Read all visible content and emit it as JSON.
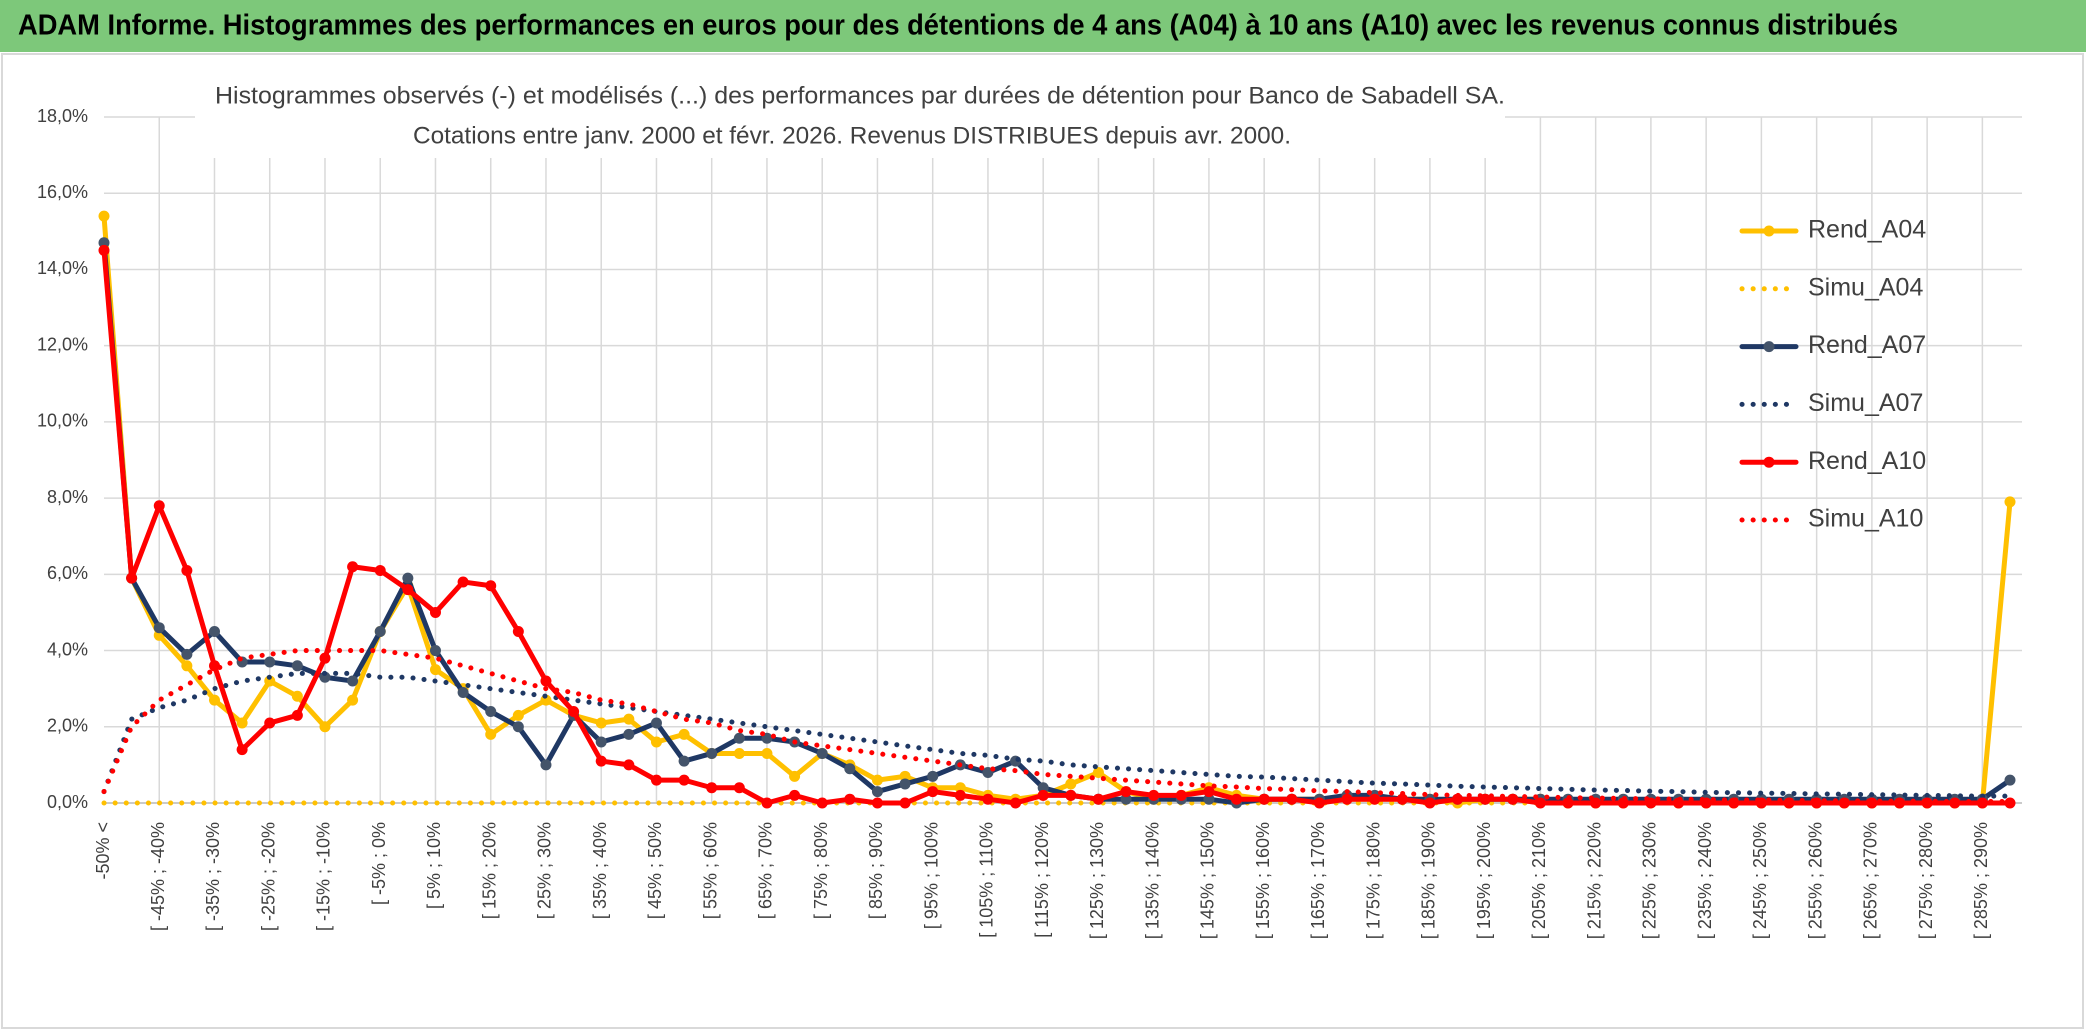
{
  "chart_data": {
    "type": "line",
    "title": "ADAM Informe. Histogrammes des performances en euros pour des détentions de 4 ans (A04) à 10 ans (A10) avec les revenus connus distribués",
    "subtitle": [
      "Histogrammes observés (-) et modélisés (...) des performances par durées de détention pour Banco de Sabadell SA.",
      "Cotations entre janv. 2000 et févr. 2026. Revenus DISTRIBUES depuis avr. 2000."
    ],
    "categories": [
      "-50% <",
      null,
      "[ -45% ; -40%",
      null,
      "[ -35% ; -30%",
      null,
      "[ -25% ; -20%",
      null,
      "[ -15% ; -10%",
      null,
      "[ -5% ; 0%",
      null,
      "[ 5% ; 10%",
      null,
      "[ 15% ; 20%",
      null,
      "[ 25% ; 30%",
      null,
      "[ 35% ; 40%",
      null,
      "[ 45% ; 50%",
      null,
      "[ 55% ; 60%",
      null,
      "[ 65% ; 70%",
      null,
      "[ 75% ; 80%",
      null,
      "[ 85% ; 90%",
      null,
      "[ 95% ; 100%",
      null,
      "[ 105% ; 110%",
      null,
      "[ 115% ; 120%",
      null,
      "[ 125% ; 130%",
      null,
      "[ 135% ; 140%",
      null,
      "[ 145% ; 150%",
      null,
      "[ 155% ; 160%",
      null,
      "[ 165% ; 170%",
      null,
      "[ 175% ; 180%",
      null,
      "[ 185% ; 190%",
      null,
      "[ 195% ; 200%",
      null,
      "[ 205% ; 210%",
      null,
      "[ 215% ; 220%",
      null,
      "[ 225% ; 230%",
      null,
      "[ 235% ; 240%",
      null,
      "[ 245% ; 250%",
      null,
      "[ 255% ; 260%",
      null,
      "[ 265% ; 270%",
      null,
      "[ 275% ; 280%",
      null,
      "[ 285% ; 290%",
      null
    ],
    "ylim": [
      0,
      18
    ],
    "yticks": [
      {
        "value": 0,
        "label": "0,0%"
      },
      {
        "value": 2,
        "label": "2,0%"
      },
      {
        "value": 4,
        "label": "4,0%"
      },
      {
        "value": 6,
        "label": "6,0%"
      },
      {
        "value": 8,
        "label": "8,0%"
      },
      {
        "value": 10,
        "label": "10,0%"
      },
      {
        "value": 12,
        "label": "12,0%"
      },
      {
        "value": 14,
        "label": "14,0%"
      },
      {
        "value": 16,
        "label": "16,0%"
      },
      {
        "value": 18,
        "label": "18,0%"
      }
    ],
    "grid": true,
    "legend": "right",
    "series": [
      {
        "name": "Rend_A04",
        "color": "#ffc000",
        "line_style": "solid",
        "values": [
          15.4,
          5.9,
          4.4,
          3.6,
          2.7,
          2.1,
          3.2,
          2.8,
          2.0,
          2.7,
          4.5,
          5.7,
          3.5,
          3.0,
          1.8,
          2.3,
          2.7,
          2.3,
          2.1,
          2.2,
          1.6,
          1.8,
          1.3,
          1.3,
          1.3,
          0.7,
          1.3,
          1.0,
          0.6,
          0.7,
          0.4,
          0.4,
          0.2,
          0.1,
          0.2,
          0.5,
          0.8,
          0.3,
          0.1,
          0.2,
          0.4,
          0.2,
          0.1,
          0.1,
          0.1,
          0.1,
          0.1,
          0.1,
          0.1,
          0.0,
          0.1,
          0.1,
          0.1,
          0.0,
          0.0,
          0.0,
          0.0,
          0.0,
          0.0,
          0.0,
          0.0,
          0.0,
          0.0,
          0.0,
          0.0,
          0.0,
          0.0,
          0.0,
          0.0,
          7.9
        ]
      },
      {
        "name": "Simu_A04",
        "color": "#ffc000",
        "line_style": "dotted",
        "values": [
          0,
          0,
          0,
          0,
          0,
          0,
          0,
          0,
          0,
          0,
          0,
          0,
          0,
          0,
          0,
          0,
          0,
          0,
          0,
          0,
          0,
          0,
          0,
          0,
          0,
          0,
          0,
          0,
          0,
          0,
          0,
          0,
          0,
          0,
          0,
          0,
          0,
          0,
          0,
          0,
          0,
          0,
          0,
          0,
          0,
          0,
          0,
          0,
          0,
          0,
          0,
          0,
          0,
          0,
          0,
          0,
          0,
          0,
          0,
          0,
          0,
          0,
          0,
          0,
          0,
          0,
          0,
          0,
          0,
          0
        ]
      },
      {
        "name": "Rend_A07",
        "color": "#1f3864",
        "line_style": "solid",
        "values": [
          14.7,
          5.9,
          4.6,
          3.9,
          4.5,
          3.7,
          3.7,
          3.6,
          3.3,
          3.2,
          4.5,
          5.9,
          4.0,
          2.9,
          2.4,
          2.0,
          1.0,
          2.3,
          1.6,
          1.8,
          2.1,
          1.1,
          1.3,
          1.7,
          1.7,
          1.6,
          1.3,
          0.9,
          0.3,
          0.5,
          0.7,
          1.0,
          0.8,
          1.1,
          0.4,
          0.2,
          0.1,
          0.1,
          0.1,
          0.1,
          0.1,
          0.0,
          0.1,
          0.1,
          0.1,
          0.2,
          0.2,
          0.1,
          0.1,
          0.1,
          0.1,
          0.1,
          0.1,
          0.1,
          0.1,
          0.1,
          0.1,
          0.1,
          0.1,
          0.1,
          0.1,
          0.1,
          0.1,
          0.1,
          0.1,
          0.1,
          0.1,
          0.1,
          0.1,
          0.6
        ]
      },
      {
        "name": "Simu_A07",
        "color": "#1f3864",
        "line_style": "dotted",
        "values": [
          0.3,
          2.2,
          2.5,
          2.7,
          3.0,
          3.2,
          3.3,
          3.4,
          3.4,
          3.4,
          3.3,
          3.3,
          3.2,
          3.1,
          3.0,
          2.9,
          2.8,
          2.7,
          2.6,
          2.5,
          2.4,
          2.3,
          2.2,
          2.1,
          2.0,
          1.9,
          1.8,
          1.7,
          1.6,
          1.5,
          1.4,
          1.3,
          1.25,
          1.15,
          1.1,
          1.0,
          0.95,
          0.9,
          0.85,
          0.8,
          0.75,
          0.7,
          0.68,
          0.64,
          0.6,
          0.56,
          0.52,
          0.5,
          0.47,
          0.44,
          0.42,
          0.4,
          0.38,
          0.36,
          0.34,
          0.33,
          0.31,
          0.3,
          0.28,
          0.27,
          0.26,
          0.25,
          0.24,
          0.23,
          0.22,
          0.21,
          0.2,
          0.19,
          0.18,
          0.18
        ]
      },
      {
        "name": "Rend_A10",
        "color": "#ff0000",
        "line_style": "solid",
        "values": [
          14.5,
          5.9,
          7.8,
          6.1,
          3.6,
          1.4,
          2.1,
          2.3,
          3.8,
          6.2,
          6.1,
          5.6,
          5.0,
          5.8,
          5.7,
          4.5,
          3.2,
          2.4,
          1.1,
          1.0,
          0.6,
          0.6,
          0.4,
          0.4,
          0.0,
          0.2,
          0.0,
          0.1,
          0.0,
          0.0,
          0.3,
          0.2,
          0.1,
          0.0,
          0.2,
          0.2,
          0.1,
          0.3,
          0.2,
          0.2,
          0.3,
          0.1,
          0.1,
          0.1,
          0.0,
          0.1,
          0.1,
          0.1,
          0.0,
          0.1,
          0.1,
          0.1,
          0.0,
          0.0,
          0.0,
          0.0,
          0.0,
          0.0,
          0.0,
          0.0,
          0.0,
          0.0,
          0.0,
          0.0,
          0.0,
          0.0,
          0.0,
          0.0,
          0.0,
          0.0
        ]
      },
      {
        "name": "Simu_A10",
        "color": "#ff0000",
        "line_style": "dotted",
        "values": [
          0.3,
          2.0,
          2.7,
          3.1,
          3.5,
          3.8,
          3.9,
          4.0,
          4.0,
          4.0,
          4.0,
          3.9,
          3.8,
          3.6,
          3.4,
          3.2,
          3.0,
          2.9,
          2.7,
          2.6,
          2.4,
          2.2,
          2.1,
          1.9,
          1.8,
          1.6,
          1.5,
          1.4,
          1.3,
          1.2,
          1.1,
          1.0,
          0.9,
          0.85,
          0.75,
          0.7,
          0.65,
          0.6,
          0.55,
          0.5,
          0.45,
          0.42,
          0.38,
          0.35,
          0.32,
          0.3,
          0.27,
          0.25,
          0.22,
          0.2,
          0.19,
          0.17,
          0.16,
          0.14,
          0.13,
          0.12,
          0.11,
          0.1,
          0.09,
          0.08,
          0.08,
          0.07,
          0.06,
          0.06,
          0.05,
          0.05,
          0.05,
          0.04,
          0.04,
          0.04
        ]
      }
    ]
  }
}
